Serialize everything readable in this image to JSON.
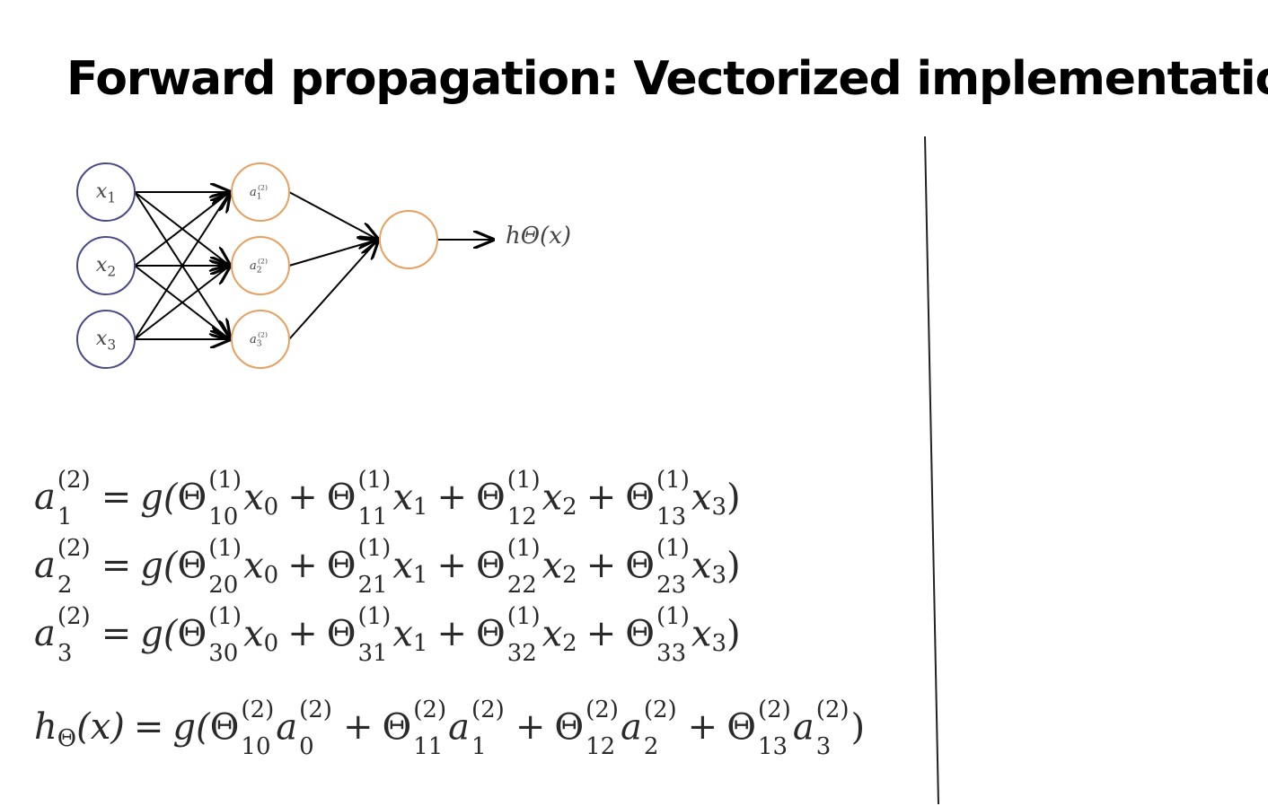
{
  "title": "Forward propagation: Vectorized implementation",
  "network": {
    "inputs": [
      "x1",
      "x2",
      "x3"
    ],
    "hidden": [
      "a1(2)",
      "a2(2)",
      "a3(2)"
    ],
    "output_label": "hΘ(x)",
    "colors": {
      "input": "#4a4a8a",
      "hidden": "#e8a060",
      "edge": "#000000"
    }
  },
  "equations": [
    {
      "lhs": {
        "v": "a",
        "sup": "(2)",
        "sub": "1"
      },
      "terms": [
        {
          "sup": "(1)",
          "sub": "10",
          "var": "x",
          "vsub": "0"
        },
        {
          "sup": "(1)",
          "sub": "11",
          "var": "x",
          "vsub": "1"
        },
        {
          "sup": "(1)",
          "sub": "12",
          "var": "x",
          "vsub": "2"
        },
        {
          "sup": "(1)",
          "sub": "13",
          "var": "x",
          "vsub": "3"
        }
      ]
    },
    {
      "lhs": {
        "v": "a",
        "sup": "(2)",
        "sub": "2"
      },
      "terms": [
        {
          "sup": "(1)",
          "sub": "20",
          "var": "x",
          "vsub": "0"
        },
        {
          "sup": "(1)",
          "sub": "21",
          "var": "x",
          "vsub": "1"
        },
        {
          "sup": "(1)",
          "sub": "22",
          "var": "x",
          "vsub": "2"
        },
        {
          "sup": "(1)",
          "sub": "23",
          "var": "x",
          "vsub": "3"
        }
      ]
    },
    {
      "lhs": {
        "v": "a",
        "sup": "(2)",
        "sub": "3"
      },
      "terms": [
        {
          "sup": "(1)",
          "sub": "30",
          "var": "x",
          "vsub": "0"
        },
        {
          "sup": "(1)",
          "sub": "31",
          "var": "x",
          "vsub": "1"
        },
        {
          "sup": "(1)",
          "sub": "32",
          "var": "x",
          "vsub": "2"
        },
        {
          "sup": "(1)",
          "sub": "33",
          "var": "x",
          "vsub": "3"
        }
      ]
    },
    {
      "lhs": {
        "v": "hΘ(x)",
        "sup": "",
        "sub": ""
      },
      "terms": [
        {
          "sup": "(2)",
          "sub": "10",
          "var": "a",
          "vsub": "0",
          "vsup": "(2)"
        },
        {
          "sup": "(2)",
          "sub": "11",
          "var": "a",
          "vsub": "1",
          "vsup": "(2)"
        },
        {
          "sup": "(2)",
          "sub": "12",
          "var": "a",
          "vsub": "2",
          "vsup": "(2)"
        },
        {
          "sup": "(2)",
          "sub": "13",
          "var": "a",
          "vsub": "3",
          "vsup": "(2)"
        }
      ]
    }
  ],
  "symbols": {
    "equals": "=",
    "func": "g(",
    "theta": "Θ",
    "plus": "+",
    "close": ")"
  }
}
